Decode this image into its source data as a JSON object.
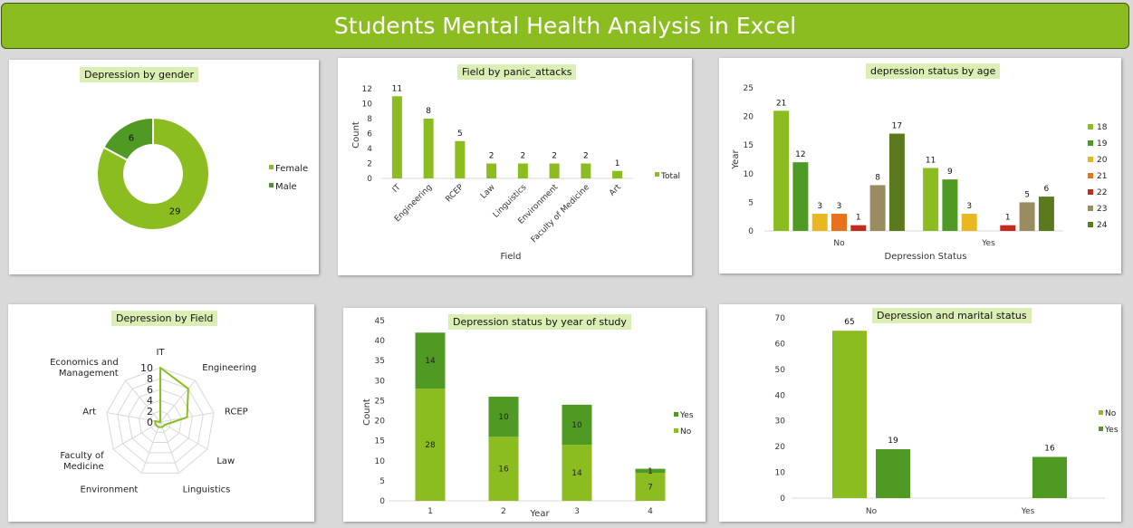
{
  "header": {
    "title": "Students Mental Health Analysis in Excel"
  },
  "colors": {
    "green": "#8bbd20",
    "dark_green": "#4f9a23",
    "header": "#8bbd20"
  },
  "chart_data": [
    {
      "id": "gender",
      "type": "pie",
      "title": "Depression by gender",
      "categories": [
        "Female",
        "Male"
      ],
      "values": [
        29,
        6
      ],
      "colors": [
        "#8bbd20",
        "#4f9a23"
      ],
      "legend": "right"
    },
    {
      "id": "panic",
      "type": "bar",
      "title": "Field by panic_attacks",
      "categories": [
        "IT",
        "Engineering",
        "RCEP",
        "Law",
        "Linguistics",
        "Environment",
        "Faculty of Medicine",
        "Art"
      ],
      "series": [
        {
          "name": "Total",
          "values": [
            11,
            8,
            5,
            2,
            2,
            2,
            2,
            1
          ],
          "color": "#8bbd20"
        }
      ],
      "xlabel": "Field",
      "ylabel": "Count",
      "ylim": [
        0,
        12
      ],
      "yticks": [
        0,
        2,
        4,
        6,
        8,
        10,
        12
      ],
      "legend": "right"
    },
    {
      "id": "age",
      "type": "bar",
      "title": "depression status by age",
      "categories": [
        "No",
        "Yes"
      ],
      "series": [
        {
          "name": "18",
          "values": [
            21,
            11
          ],
          "color": "#8bbd20"
        },
        {
          "name": "19",
          "values": [
            12,
            9
          ],
          "color": "#4f9a23"
        },
        {
          "name": "20",
          "values": [
            3,
            3
          ],
          "color": "#e9b820"
        },
        {
          "name": "21",
          "values": [
            3,
            null
          ],
          "color": "#e8711c"
        },
        {
          "name": "22",
          "values": [
            1,
            1
          ],
          "color": "#c42b1c"
        },
        {
          "name": "23",
          "values": [
            8,
            5
          ],
          "color": "#9b8b61"
        },
        {
          "name": "24",
          "values": [
            17,
            6
          ],
          "color": "#5b7a1e"
        }
      ],
      "xlabel": "Depression Status",
      "ylabel": "Year",
      "ylim": [
        0,
        25
      ],
      "yticks": [
        0,
        5,
        10,
        15,
        20,
        25
      ],
      "legend": "right"
    },
    {
      "id": "field",
      "type": "radar",
      "title": "Depression by Field",
      "categories": [
        "IT",
        "Engineering",
        "RCEP",
        "Law",
        "Linguistics",
        "Environment",
        "Faculty of Medicine",
        "Art",
        "Economics and Management"
      ],
      "values": [
        10,
        8,
        5,
        1,
        1,
        1,
        1,
        1,
        0
      ],
      "rlim": [
        0,
        10
      ],
      "rticks": [
        0,
        2,
        4,
        6,
        8,
        10
      ],
      "color": "#8bbd20"
    },
    {
      "id": "year",
      "type": "bar",
      "stacked": true,
      "title": "Depression status by year of study",
      "categories": [
        "1",
        "2",
        "3",
        "4"
      ],
      "series": [
        {
          "name": "No",
          "values": [
            28,
            16,
            14,
            7
          ],
          "color": "#8bbd20"
        },
        {
          "name": "Yes",
          "values": [
            14,
            10,
            10,
            1
          ],
          "color": "#4f9a23"
        }
      ],
      "xlabel": "Year",
      "ylabel": "Count",
      "ylim": [
        0,
        45
      ],
      "yticks": [
        0,
        5,
        10,
        15,
        20,
        25,
        30,
        35,
        40,
        45
      ],
      "legend": "right"
    },
    {
      "id": "marital",
      "type": "bar",
      "title": "Depression and marital status",
      "categories": [
        "No",
        "Yes"
      ],
      "series": [
        {
          "name": "No",
          "values": [
            65,
            null
          ],
          "color": "#8bbd20"
        },
        {
          "name": "Yes",
          "values": [
            19,
            16
          ],
          "color": "#4f9a23"
        }
      ],
      "ylim": [
        0,
        70
      ],
      "yticks": [
        0,
        10,
        20,
        30,
        40,
        50,
        60,
        70
      ],
      "legend": "right"
    }
  ]
}
